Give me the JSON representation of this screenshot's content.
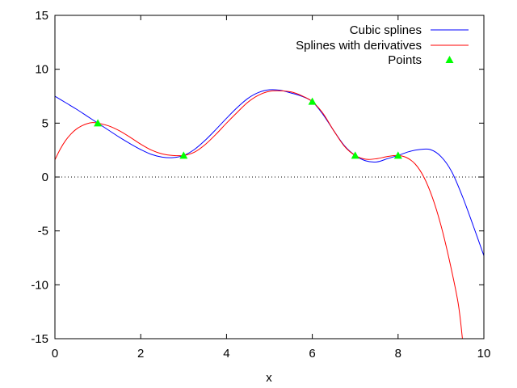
{
  "chart_data": {
    "type": "line",
    "xlabel": "x",
    "ylabel": "",
    "title": "",
    "xlim": [
      0,
      10
    ],
    "ylim": [
      -15,
      15
    ],
    "x_ticks": [
      "0",
      "2",
      "4",
      "6",
      "8",
      "10"
    ],
    "y_ticks": [
      "15",
      "10",
      "5",
      "0",
      "-5",
      "-10",
      "-15"
    ],
    "grid": false,
    "zero_line": true,
    "legend_position": "top-right",
    "series": [
      {
        "name": "Cubic splines",
        "color": "#0000ff",
        "style": "line",
        "x": [
          0.0,
          0.25,
          0.5,
          0.75,
          1.0,
          1.25,
          1.5,
          1.75,
          2.0,
          2.25,
          2.5,
          2.75,
          3.0,
          3.25,
          3.5,
          3.75,
          4.0,
          4.25,
          4.5,
          4.75,
          5.0,
          5.25,
          5.5,
          5.75,
          6.0,
          6.25,
          6.5,
          6.75,
          7.0,
          7.25,
          7.5,
          7.75,
          8.0,
          8.25,
          8.5,
          8.75,
          9.0,
          9.25,
          9.5,
          9.75,
          10.0
        ],
        "y": [
          7.5,
          6.9,
          6.3,
          5.65,
          5.0,
          4.35,
          3.7,
          3.1,
          2.55,
          2.1,
          1.85,
          1.8,
          2.0,
          2.55,
          3.4,
          4.4,
          5.45,
          6.45,
          7.3,
          7.85,
          8.1,
          8.05,
          7.8,
          7.5,
          7.0,
          5.8,
          4.3,
          2.9,
          2.0,
          1.5,
          1.4,
          1.7,
          2.0,
          2.35,
          2.55,
          2.55,
          1.9,
          0.5,
          -1.8,
          -4.5,
          -7.3
        ]
      },
      {
        "name": "Splines with derivatives",
        "color": "#ff0000",
        "style": "line",
        "x": [
          0.0,
          0.125,
          0.25,
          0.375,
          0.5,
          0.625,
          0.75,
          0.875,
          1.0,
          1.25,
          1.5,
          1.75,
          2.0,
          2.25,
          2.5,
          2.75,
          3.0,
          3.25,
          3.5,
          3.75,
          4.0,
          4.25,
          4.5,
          4.75,
          5.0,
          5.25,
          5.5,
          5.75,
          6.0,
          6.25,
          6.5,
          6.75,
          7.0,
          7.25,
          7.5,
          7.75,
          8.0,
          8.2,
          8.4,
          8.6,
          8.8,
          9.0,
          9.2,
          9.4,
          9.5
        ],
        "y": [
          1.6,
          2.6,
          3.4,
          4.0,
          4.45,
          4.75,
          4.95,
          5.05,
          5.0,
          4.75,
          4.3,
          3.7,
          3.05,
          2.5,
          2.15,
          2.0,
          2.0,
          2.3,
          3.0,
          3.95,
          5.0,
          6.0,
          6.95,
          7.6,
          7.95,
          8.0,
          7.9,
          7.55,
          7.0,
          5.9,
          4.3,
          2.85,
          2.0,
          1.65,
          1.7,
          1.9,
          2.0,
          1.8,
          1.2,
          0.0,
          -1.9,
          -4.5,
          -7.8,
          -11.7,
          -15.0
        ]
      },
      {
        "name": "Points",
        "color": "#00ff00",
        "style": "points",
        "marker": "triangle",
        "x": [
          1,
          3,
          6,
          7,
          8
        ],
        "y": [
          5,
          2,
          7,
          2,
          2
        ]
      }
    ]
  }
}
